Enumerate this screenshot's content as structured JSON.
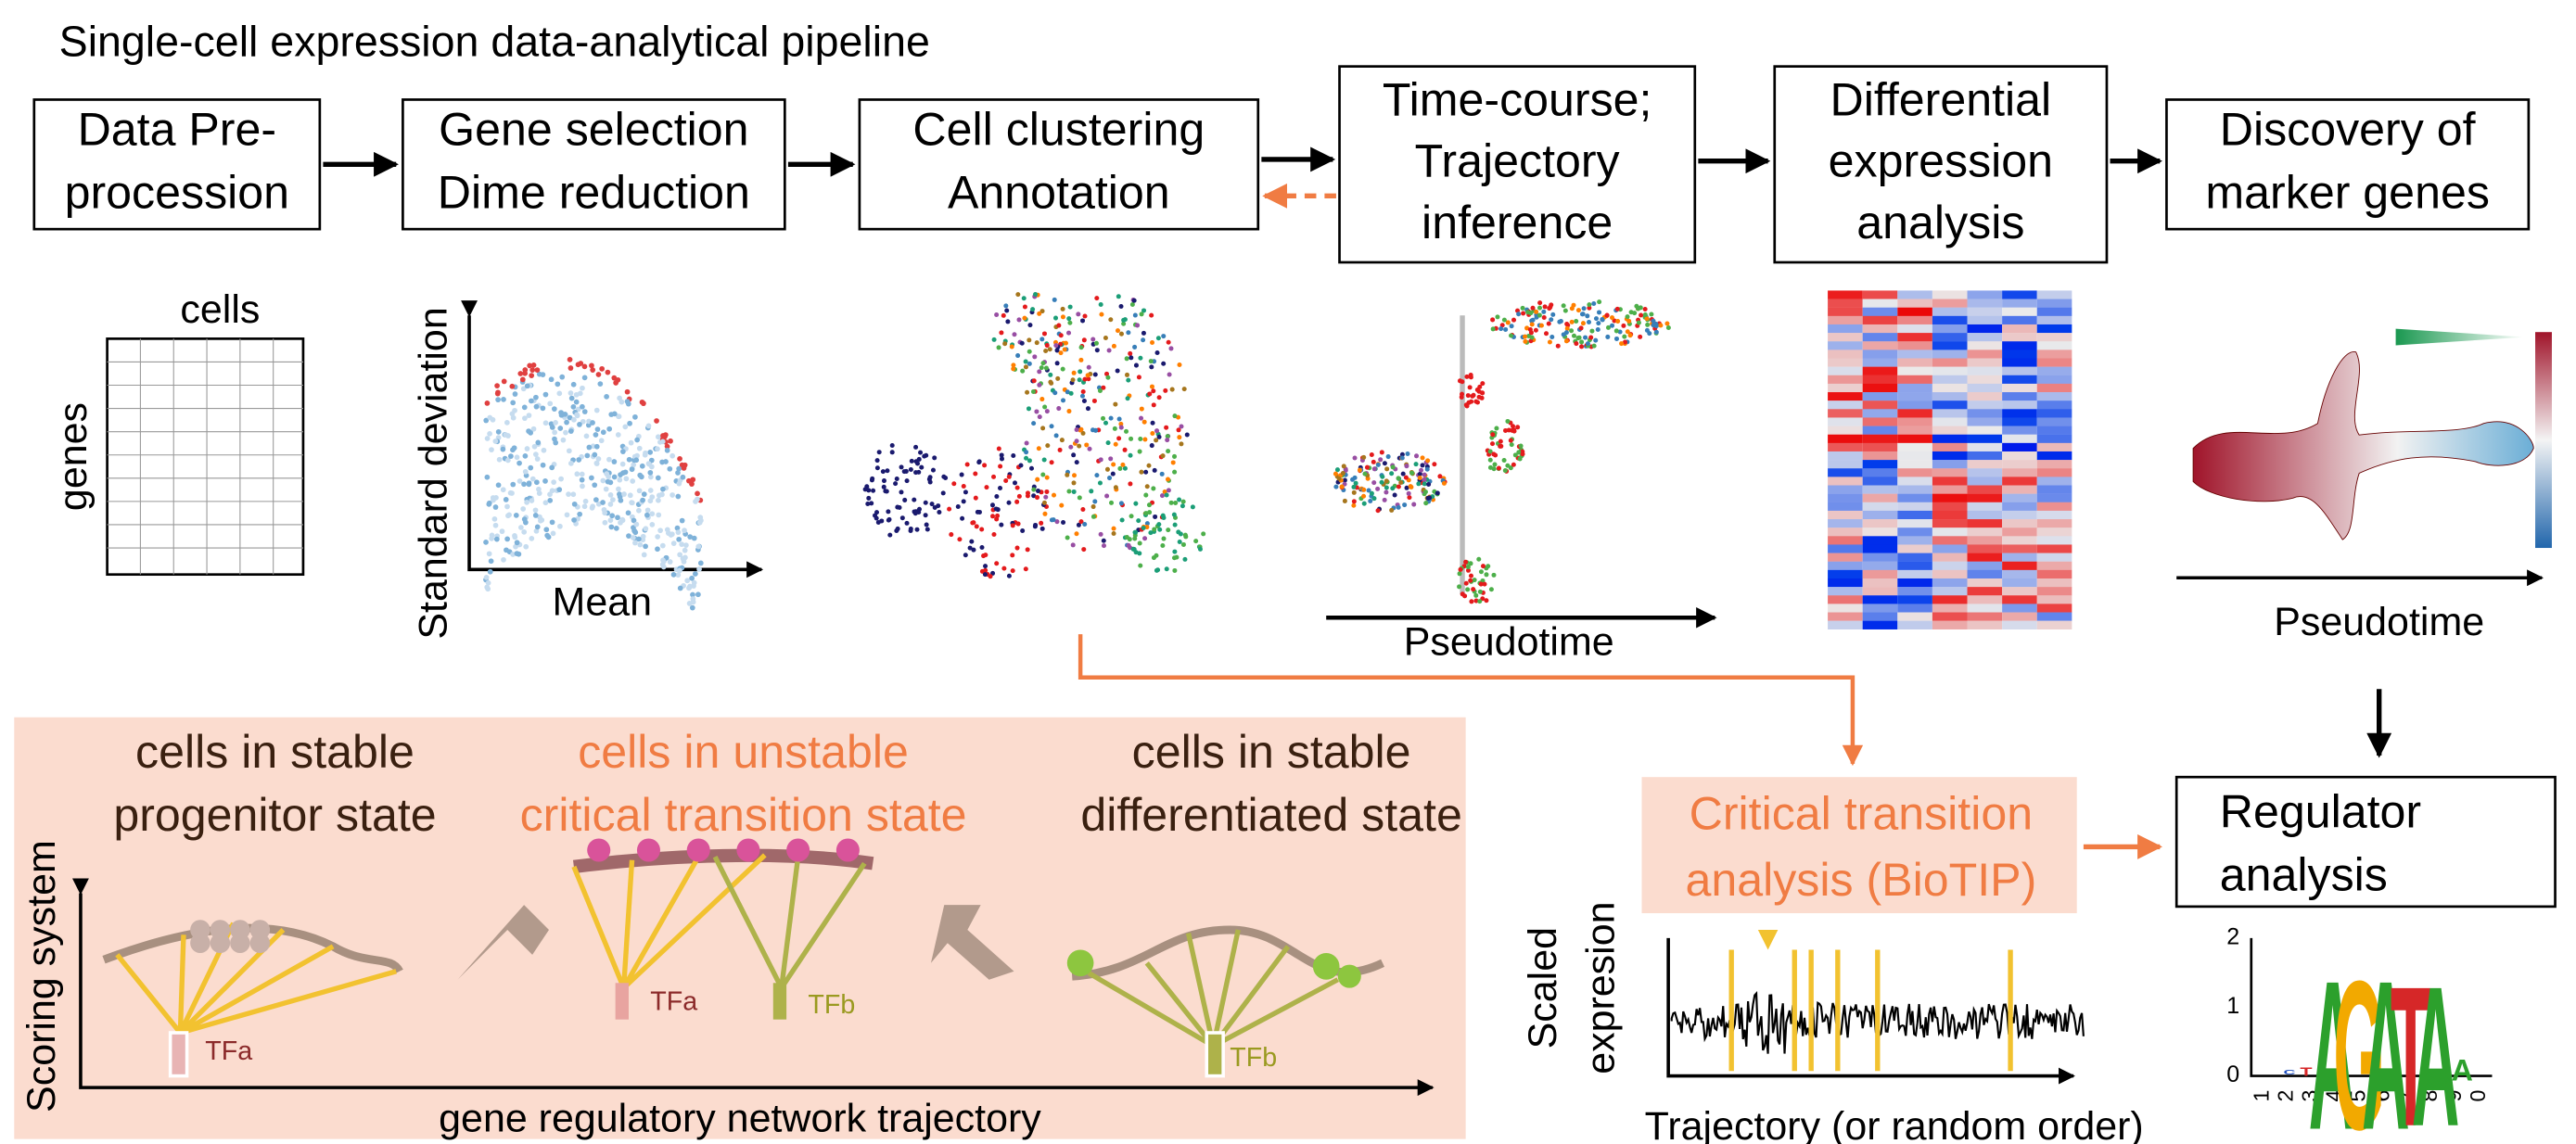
{
  "title": "Single-cell expression data-analytical pipeline",
  "steps": [
    {
      "lines": [
        "Data Pre-",
        "procession"
      ]
    },
    {
      "lines": [
        "Gene selection",
        "Dime reduction"
      ]
    },
    {
      "lines": [
        "Cell clustering",
        "Annotation"
      ]
    },
    {
      "lines": [
        "Time-course;",
        "Trajectory",
        "inference"
      ]
    },
    {
      "lines": [
        "Differential",
        "expression",
        "analysis"
      ]
    },
    {
      "lines": [
        "Discovery of",
        "marker genes"
      ]
    }
  ],
  "panels": {
    "matrix_columns": "cells",
    "matrix_rows": "genes",
    "variance_y": "Standard deviation",
    "variance_x": "Mean",
    "trajectory_x": "Pseudotime",
    "marker_x": "Pseudotime"
  },
  "states": [
    {
      "lines": [
        "cells in stable",
        "progenitor state"
      ]
    },
    {
      "lines": [
        "cells in unstable",
        "critical transition state"
      ]
    },
    {
      "lines": [
        "cells in stable",
        "differentiated state"
      ]
    }
  ],
  "scoring_axis": "Scoring system",
  "trajectory_axis": "gene regulatory network trajectory",
  "tf_labels": [
    "TFa",
    "TFa",
    "TFb",
    "TFb"
  ],
  "critical": {
    "lines": [
      "Critical transition",
      "analysis (BioTIP)"
    ]
  },
  "scaled_axis": [
    "Scaled",
    "expresion"
  ],
  "order_axis": "Trajectory (or random order)",
  "regulator": {
    "lines": [
      "Regulator",
      "analysis"
    ]
  },
  "logo": {
    "yticks": [
      2,
      1,
      0
    ],
    "positions": [
      1,
      2,
      3,
      4,
      5,
      6,
      7,
      8,
      9,
      0
    ],
    "letters": [
      "C",
      "T",
      "A",
      "G",
      "A",
      "T",
      "A",
      "A",
      "G"
    ]
  }
}
